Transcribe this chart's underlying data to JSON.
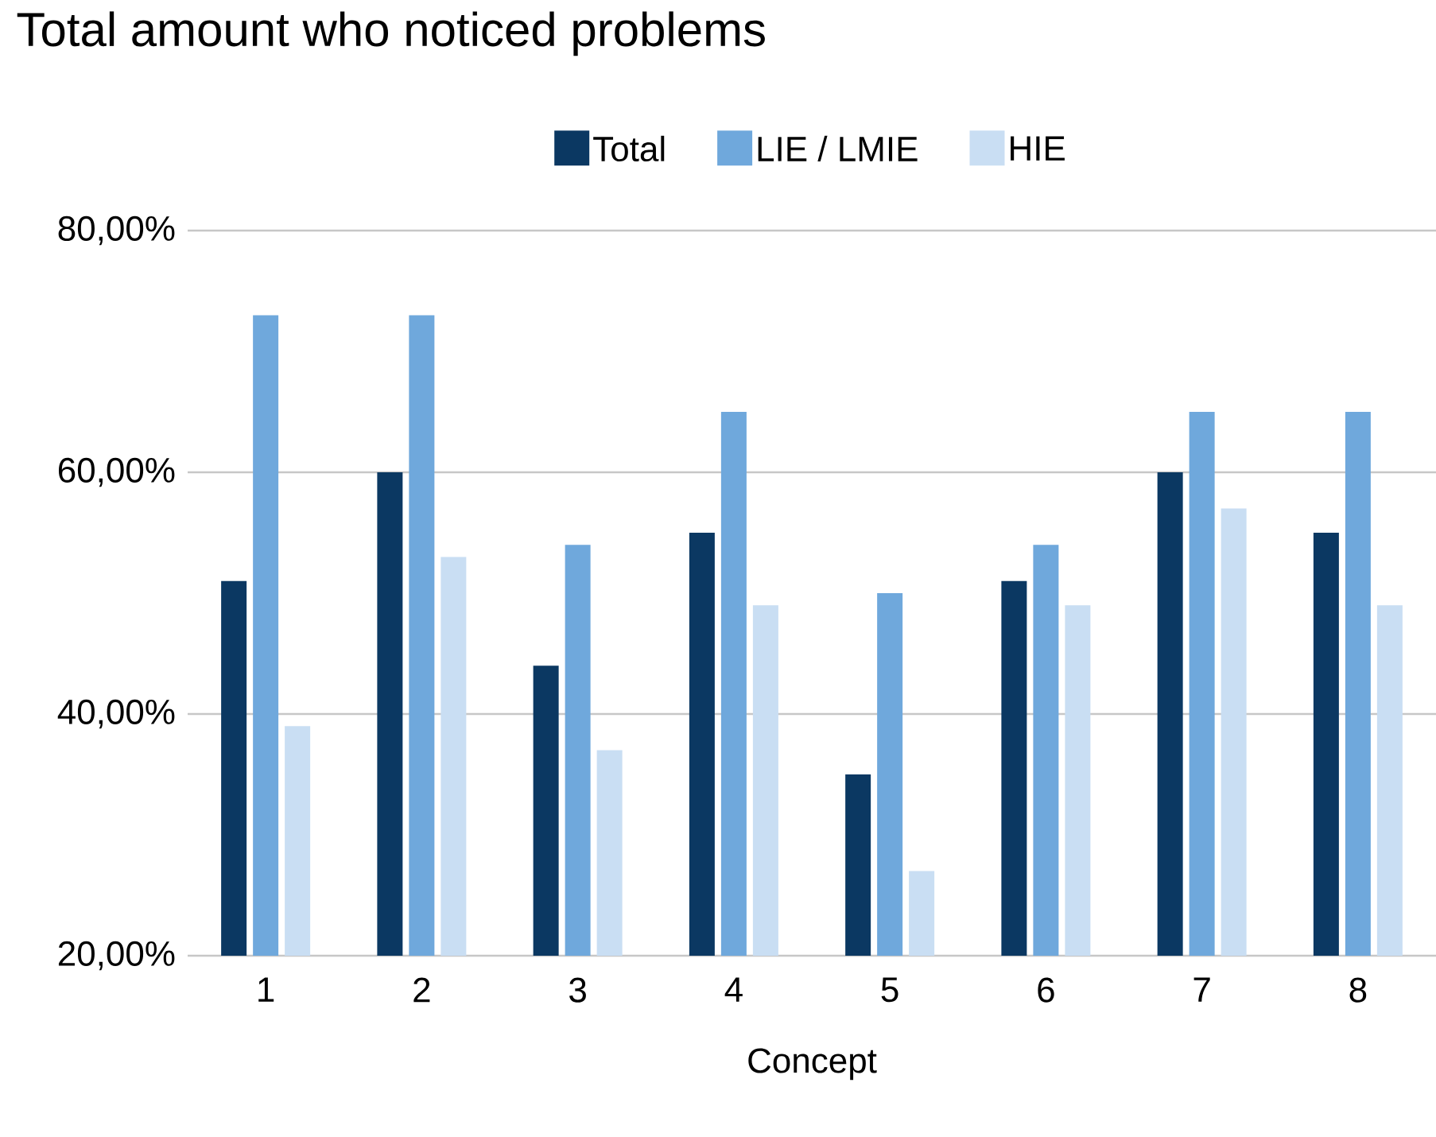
{
  "chart_data": {
    "type": "bar",
    "title": "Total amount who noticed problems",
    "xlabel": "Concept",
    "categories": [
      "1",
      "2",
      "3",
      "4",
      "5",
      "6",
      "7",
      "8"
    ],
    "series": [
      {
        "name": "Total",
        "color": "#0b3862",
        "values": [
          51,
          60,
          44,
          55,
          35,
          51,
          60,
          55
        ]
      },
      {
        "name": "LIE / LMIE",
        "color": "#6fa8dc",
        "values": [
          73,
          73,
          54,
          65,
          50,
          54,
          65,
          65
        ]
      },
      {
        "name": "HIE",
        "color": "#c9def3",
        "values": [
          39,
          53,
          37,
          49,
          27,
          49,
          57,
          49
        ]
      }
    ],
    "ylim": [
      20,
      80
    ],
    "yticks": [
      {
        "value": 20,
        "label": "20,00%"
      },
      {
        "value": 40,
        "label": "40,00%"
      },
      {
        "value": 60,
        "label": "60,00%"
      },
      {
        "value": 80,
        "label": "80,00%"
      }
    ],
    "grid": "y",
    "legend": "top"
  }
}
